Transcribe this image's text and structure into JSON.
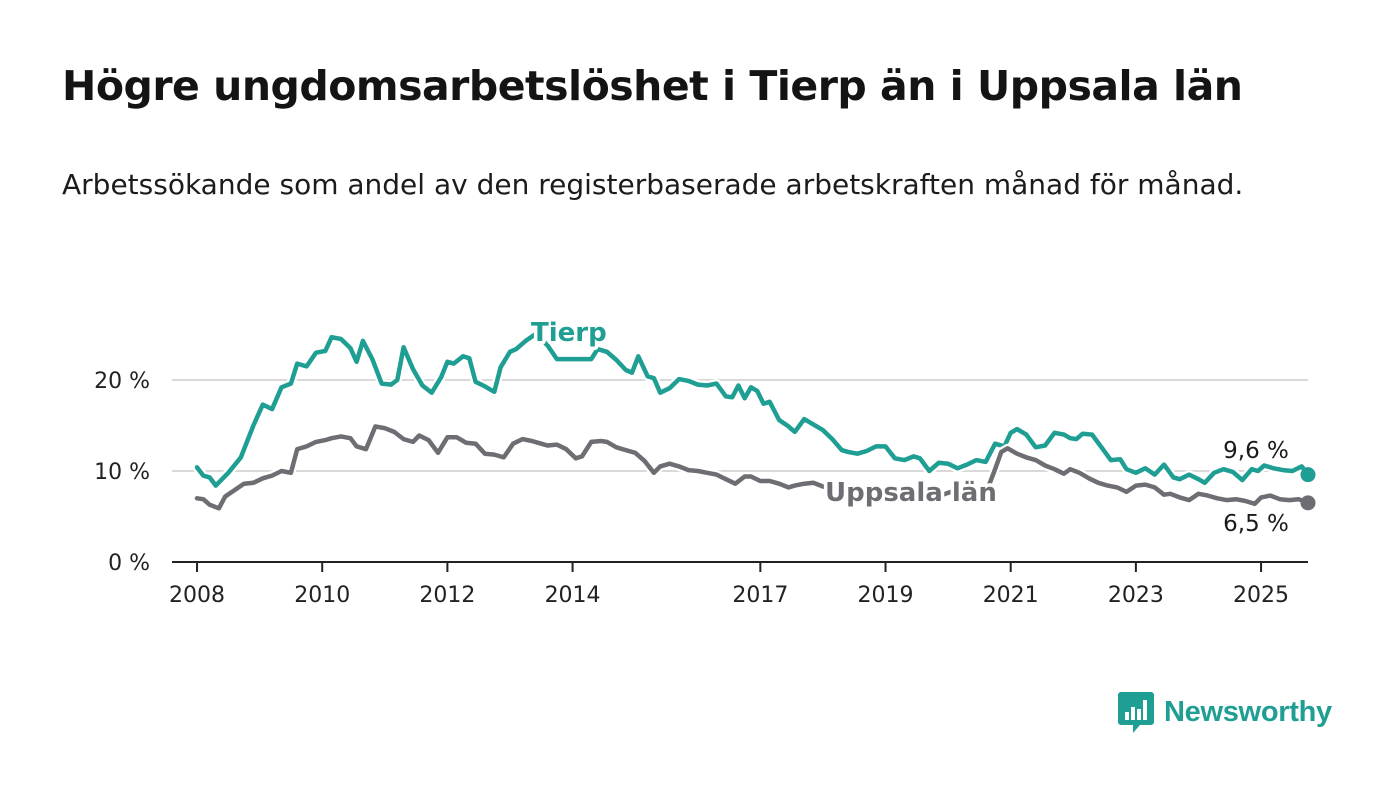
{
  "title": "Högre ungdomsarbetslöshet i Tierp än i Uppsala län",
  "subtitle": "Arbetssökande som andel av den registerbaserade arbetskraften månad för månad.",
  "logo": {
    "text": "Newsworthy",
    "icon": "newsworthy-bar-chart-icon"
  },
  "colors": {
    "tierp": "#1f9e93",
    "uppsala": "#6e6d73",
    "grid": "#d9d9d9",
    "axis": "#222222"
  },
  "chart_data": {
    "type": "line",
    "xlabel": "",
    "ylabel": "",
    "xlim": [
      2007.6,
      2025.75
    ],
    "ylim": [
      0,
      20
    ],
    "y_ticks": [
      0,
      10,
      20
    ],
    "y_tick_labels": [
      "0 %",
      "10 %",
      "20 %"
    ],
    "x_ticks": [
      2008,
      2010,
      2012,
      2014,
      2017,
      2019,
      2021,
      2023,
      2025
    ],
    "x_tick_labels": [
      "2008",
      "2010",
      "2012",
      "2014",
      "2017",
      "2019",
      "2021",
      "2023",
      "2025"
    ],
    "grid": "horizontal",
    "series": [
      {
        "name": "Tierp",
        "color": "#1f9e93",
        "end_label": "9,6 %",
        "points": [
          [
            2008.0,
            10.4
          ],
          [
            2008.1,
            9.5
          ],
          [
            2008.2,
            9.3
          ],
          [
            2008.3,
            8.4
          ],
          [
            2008.5,
            9.8
          ],
          [
            2008.7,
            11.5
          ],
          [
            2008.9,
            15.0
          ],
          [
            2009.05,
            17.3
          ],
          [
            2009.2,
            16.8
          ],
          [
            2009.35,
            19.2
          ],
          [
            2009.5,
            19.6
          ],
          [
            2009.6,
            21.8
          ],
          [
            2009.75,
            21.5
          ],
          [
            2009.9,
            23.0
          ],
          [
            2010.05,
            23.2
          ],
          [
            2010.15,
            24.7
          ],
          [
            2010.3,
            24.5
          ],
          [
            2010.45,
            23.5
          ],
          [
            2010.55,
            22.0
          ],
          [
            2010.65,
            24.3
          ],
          [
            2010.8,
            22.3
          ],
          [
            2010.95,
            19.6
          ],
          [
            2011.1,
            19.5
          ],
          [
            2011.2,
            20.0
          ],
          [
            2011.3,
            23.6
          ],
          [
            2011.45,
            21.2
          ],
          [
            2011.6,
            19.4
          ],
          [
            2011.75,
            18.6
          ],
          [
            2011.9,
            20.3
          ],
          [
            2012.0,
            22.0
          ],
          [
            2012.1,
            21.8
          ],
          [
            2012.25,
            22.6
          ],
          [
            2012.35,
            22.4
          ],
          [
            2012.45,
            19.8
          ],
          [
            2012.6,
            19.3
          ],
          [
            2012.75,
            18.7
          ],
          [
            2012.85,
            21.4
          ],
          [
            2013.0,
            23.1
          ],
          [
            2013.1,
            23.4
          ],
          [
            2013.25,
            24.3
          ],
          [
            2013.4,
            25.0
          ],
          [
            2013.5,
            24.5
          ],
          [
            2013.6,
            23.8
          ],
          [
            2013.75,
            22.3
          ],
          [
            2014.3,
            22.3
          ],
          [
            2014.4,
            23.4
          ],
          [
            2014.55,
            23.1
          ],
          [
            2014.7,
            22.2
          ],
          [
            2014.85,
            21.1
          ],
          [
            2014.95,
            20.8
          ],
          [
            2015.05,
            22.6
          ],
          [
            2015.2,
            20.4
          ],
          [
            2015.3,
            20.2
          ],
          [
            2015.4,
            18.6
          ],
          [
            2015.55,
            19.1
          ],
          [
            2015.7,
            20.1
          ],
          [
            2015.85,
            19.9
          ],
          [
            2016.0,
            19.5
          ],
          [
            2016.15,
            19.4
          ],
          [
            2016.3,
            19.6
          ],
          [
            2016.45,
            18.2
          ],
          [
            2016.55,
            18.1
          ],
          [
            2016.65,
            19.4
          ],
          [
            2016.75,
            18.0
          ],
          [
            2016.85,
            19.2
          ],
          [
            2016.95,
            18.8
          ],
          [
            2017.05,
            17.4
          ],
          [
            2017.15,
            17.6
          ],
          [
            2017.3,
            15.6
          ],
          [
            2017.45,
            14.9
          ],
          [
            2017.55,
            14.3
          ],
          [
            2017.7,
            15.7
          ],
          [
            2017.85,
            15.1
          ],
          [
            2018.0,
            14.5
          ],
          [
            2018.15,
            13.5
          ],
          [
            2018.3,
            12.3
          ],
          [
            2018.4,
            12.1
          ],
          [
            2018.55,
            11.9
          ],
          [
            2018.7,
            12.2
          ],
          [
            2018.85,
            12.7
          ],
          [
            2019.0,
            12.7
          ],
          [
            2019.15,
            11.4
          ],
          [
            2019.3,
            11.2
          ],
          [
            2019.45,
            11.6
          ],
          [
            2019.55,
            11.4
          ],
          [
            2019.7,
            10.0
          ],
          [
            2019.85,
            10.9
          ],
          [
            2020.0,
            10.8
          ],
          [
            2020.15,
            10.3
          ],
          [
            2020.3,
            10.7
          ],
          [
            2020.45,
            11.2
          ],
          [
            2020.6,
            11.0
          ],
          [
            2020.75,
            13.0
          ],
          [
            2020.9,
            12.7
          ],
          [
            2021.0,
            14.2
          ],
          [
            2021.1,
            14.6
          ],
          [
            2021.25,
            14.0
          ],
          [
            2021.4,
            12.6
          ],
          [
            2021.55,
            12.8
          ],
          [
            2021.7,
            14.2
          ],
          [
            2021.85,
            14.0
          ],
          [
            2021.95,
            13.6
          ],
          [
            2022.05,
            13.5
          ],
          [
            2022.15,
            14.1
          ],
          [
            2022.3,
            14.0
          ],
          [
            2022.45,
            12.6
          ],
          [
            2022.6,
            11.2
          ],
          [
            2022.75,
            11.3
          ],
          [
            2022.85,
            10.2
          ],
          [
            2023.0,
            9.8
          ],
          [
            2023.15,
            10.3
          ],
          [
            2023.3,
            9.6
          ],
          [
            2023.45,
            10.7
          ],
          [
            2023.6,
            9.3
          ],
          [
            2023.7,
            9.1
          ],
          [
            2023.85,
            9.6
          ],
          [
            2024.0,
            9.1
          ],
          [
            2024.1,
            8.7
          ],
          [
            2024.25,
            9.8
          ],
          [
            2024.4,
            10.2
          ],
          [
            2024.55,
            9.9
          ],
          [
            2024.7,
            9.0
          ],
          [
            2024.85,
            10.2
          ],
          [
            2024.95,
            10.0
          ],
          [
            2025.05,
            10.6
          ],
          [
            2025.2,
            10.3
          ],
          [
            2025.35,
            10.1
          ],
          [
            2025.5,
            10.0
          ],
          [
            2025.65,
            10.5
          ],
          [
            2025.75,
            9.6
          ]
        ]
      },
      {
        "name": "Uppsala län",
        "color": "#6e6d73",
        "end_label": "6,5 %",
        "points": [
          [
            2008.0,
            7.0
          ],
          [
            2008.1,
            6.9
          ],
          [
            2008.2,
            6.3
          ],
          [
            2008.35,
            5.9
          ],
          [
            2008.45,
            7.2
          ],
          [
            2008.6,
            7.9
          ],
          [
            2008.75,
            8.6
          ],
          [
            2008.9,
            8.7
          ],
          [
            2009.05,
            9.2
          ],
          [
            2009.2,
            9.5
          ],
          [
            2009.35,
            10.0
          ],
          [
            2009.5,
            9.8
          ],
          [
            2009.6,
            12.4
          ],
          [
            2009.75,
            12.7
          ],
          [
            2009.9,
            13.2
          ],
          [
            2010.05,
            13.4
          ],
          [
            2010.15,
            13.6
          ],
          [
            2010.3,
            13.8
          ],
          [
            2010.45,
            13.6
          ],
          [
            2010.55,
            12.7
          ],
          [
            2010.7,
            12.4
          ],
          [
            2010.85,
            14.9
          ],
          [
            2011.0,
            14.7
          ],
          [
            2011.15,
            14.3
          ],
          [
            2011.3,
            13.5
          ],
          [
            2011.45,
            13.2
          ],
          [
            2011.55,
            13.9
          ],
          [
            2011.7,
            13.4
          ],
          [
            2011.85,
            12.0
          ],
          [
            2012.0,
            13.7
          ],
          [
            2012.15,
            13.7
          ],
          [
            2012.3,
            13.1
          ],
          [
            2012.45,
            13.0
          ],
          [
            2012.6,
            11.9
          ],
          [
            2012.75,
            11.8
          ],
          [
            2012.9,
            11.5
          ],
          [
            2013.05,
            13.0
          ],
          [
            2013.2,
            13.5
          ],
          [
            2013.35,
            13.3
          ],
          [
            2013.5,
            13.0
          ],
          [
            2013.6,
            12.8
          ],
          [
            2013.75,
            12.9
          ],
          [
            2013.9,
            12.4
          ],
          [
            2014.05,
            11.4
          ],
          [
            2014.15,
            11.6
          ],
          [
            2014.3,
            13.2
          ],
          [
            2014.45,
            13.3
          ],
          [
            2014.55,
            13.2
          ],
          [
            2014.7,
            12.6
          ],
          [
            2014.85,
            12.3
          ],
          [
            2015.0,
            12.0
          ],
          [
            2015.15,
            11.1
          ],
          [
            2015.3,
            9.8
          ],
          [
            2015.4,
            10.5
          ],
          [
            2015.55,
            10.8
          ],
          [
            2015.7,
            10.5
          ],
          [
            2015.85,
            10.1
          ],
          [
            2016.0,
            10.0
          ],
          [
            2016.15,
            9.8
          ],
          [
            2016.3,
            9.6
          ],
          [
            2016.45,
            9.1
          ],
          [
            2016.6,
            8.6
          ],
          [
            2016.75,
            9.4
          ],
          [
            2016.85,
            9.4
          ],
          [
            2017.0,
            8.9
          ],
          [
            2017.15,
            8.9
          ],
          [
            2017.3,
            8.6
          ],
          [
            2017.45,
            8.2
          ],
          [
            2017.55,
            8.4
          ],
          [
            2017.7,
            8.6
          ],
          [
            2017.85,
            8.7
          ],
          [
            2018.0,
            8.3
          ],
          [
            2018.15,
            8.0
          ],
          [
            2018.3,
            7.8
          ],
          [
            2018.45,
            8.0
          ],
          [
            2018.6,
            7.9
          ],
          [
            2018.75,
            7.6
          ],
          [
            2018.9,
            7.7
          ],
          [
            2019.05,
            7.5
          ],
          [
            2019.2,
            7.6
          ],
          [
            2019.35,
            7.4
          ],
          [
            2019.5,
            7.4
          ],
          [
            2019.65,
            7.2
          ],
          [
            2019.8,
            7.1
          ],
          [
            2020.0,
            7.6
          ],
          [
            2020.15,
            7.9
          ],
          [
            2020.3,
            7.7
          ],
          [
            2020.45,
            7.6
          ],
          [
            2020.6,
            7.5
          ],
          [
            2020.75,
            10.2
          ],
          [
            2020.85,
            12.1
          ],
          [
            2020.95,
            12.5
          ],
          [
            2021.1,
            11.9
          ],
          [
            2021.25,
            11.5
          ],
          [
            2021.4,
            11.2
          ],
          [
            2021.55,
            10.6
          ],
          [
            2021.7,
            10.2
          ],
          [
            2021.85,
            9.7
          ],
          [
            2021.95,
            10.2
          ],
          [
            2022.1,
            9.8
          ],
          [
            2022.25,
            9.2
          ],
          [
            2022.4,
            8.7
          ],
          [
            2022.55,
            8.4
          ],
          [
            2022.7,
            8.2
          ],
          [
            2022.85,
            7.7
          ],
          [
            2023.0,
            8.4
          ],
          [
            2023.15,
            8.5
          ],
          [
            2023.3,
            8.2
          ],
          [
            2023.45,
            7.4
          ],
          [
            2023.55,
            7.5
          ],
          [
            2023.7,
            7.1
          ],
          [
            2023.85,
            6.8
          ],
          [
            2024.0,
            7.5
          ],
          [
            2024.15,
            7.3
          ],
          [
            2024.3,
            7.0
          ],
          [
            2024.45,
            6.8
          ],
          [
            2024.6,
            6.9
          ],
          [
            2024.75,
            6.7
          ],
          [
            2024.9,
            6.4
          ],
          [
            2025.0,
            7.1
          ],
          [
            2025.15,
            7.3
          ],
          [
            2025.3,
            6.9
          ],
          [
            2025.45,
            6.8
          ],
          [
            2025.6,
            6.9
          ],
          [
            2025.75,
            6.5
          ]
        ]
      }
    ]
  }
}
